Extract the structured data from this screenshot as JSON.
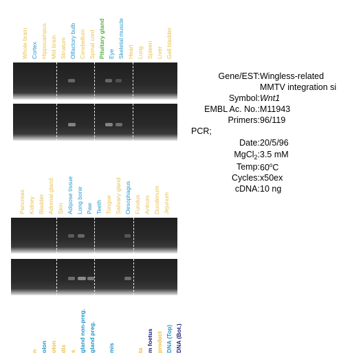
{
  "colors": {
    "gold": "#E8C04A",
    "blue": "#2196C8",
    "green": "#54B23A",
    "navy": "#1C1C78",
    "gel": "#2a2a2a"
  },
  "panels": [
    {
      "labels": [
        {
          "text": "Whole brain",
          "color": "#E8C04A"
        },
        {
          "text": "Cortex",
          "color": "#2196C8"
        },
        {
          "text": "Hippocampus",
          "color": "#E8C04A"
        },
        {
          "text": "Mid brain",
          "color": "#E8C04A"
        },
        {
          "text": "Striatum",
          "color": "#E8C04A"
        },
        {
          "text": "Olfactory bulb",
          "color": "#2196C8"
        },
        {
          "text": "Cerebellum",
          "color": "#E8C04A"
        },
        {
          "text": "Spinal cord",
          "color": "#E8C04A"
        },
        {
          "text": "Pituitary gland",
          "color": "#54B23A"
        },
        {
          "text": "Eye",
          "color": "#2196C8"
        },
        {
          "text": "Skeletal muscle",
          "color": "#2196C8"
        },
        {
          "text": "Heart",
          "color": "#E8C04A"
        },
        {
          "text": "Lung",
          "color": "#E8C04A"
        },
        {
          "text": "Spleen",
          "color": "#E8C04A"
        },
        {
          "text": "Liver",
          "color": "#E8C04A"
        },
        {
          "text": "Gall bladder",
          "color": "#E8C04A"
        }
      ]
    },
    {
      "labels": [
        {
          "text": "Pancreas",
          "color": "#E8C04A"
        },
        {
          "text": "Kidney",
          "color": "#E8C04A"
        },
        {
          "text": "Bladder",
          "color": "#E8C04A"
        },
        {
          "text": "Adrenal gland",
          "color": "#E8C04A"
        },
        {
          "text": "Skin",
          "color": "#E8C04A"
        },
        {
          "text": "Adipose tissue",
          "color": "#2196C8"
        },
        {
          "text": "Long bone",
          "color": "#2196C8"
        },
        {
          "text": "Paw",
          "color": "#2196C8"
        },
        {
          "text": "Teeth",
          "color": "#2196C8"
        },
        {
          "text": "Tongue",
          "color": "#E8C04A"
        },
        {
          "text": "Salivary gland",
          "color": "#E8C04A"
        },
        {
          "text": "Oesophagus",
          "color": "#2196C8"
        },
        {
          "text": "Fundus",
          "color": "#E8C04A"
        },
        {
          "text": "Antrum",
          "color": "#E8C04A"
        },
        {
          "text": "Duodenum",
          "color": "#E8C04A"
        },
        {
          "text": "Jejunum",
          "color": "#E8C04A"
        }
      ]
    },
    {
      "labels": [
        {
          "text": "n",
          "color": "#E8C04A"
        },
        {
          "text": "olon",
          "color": "#2196C8"
        },
        {
          "text": "olon",
          "color": "#E8C04A"
        },
        {
          "text": "dix",
          "color": "#E8C04A"
        },
        {
          "text": "s",
          "color": "#E8C04A"
        },
        {
          "text": "gland non-preg.",
          "color": "#2196C8"
        },
        {
          "text": "gland preg.",
          "color": "#2196C8"
        },
        {
          "text": "",
          "color": "#E8C04A"
        },
        {
          "text": "mis",
          "color": "#2196C8"
        },
        {
          "text": "",
          "color": "#E8C04A"
        },
        {
          "text": "ta",
          "color": "#E8C04A"
        },
        {
          "text": "m foetus",
          "color": "#1C1C78"
        },
        {
          "text": "product",
          "color": "#E8C04A"
        },
        {
          "text": "DNA (Top)",
          "color": "#2196C8"
        },
        {
          "text": "DNA (Bot.)",
          "color": "#1C1C78"
        }
      ]
    }
  ],
  "info": {
    "rows": [
      {
        "label": "Gene/EST:",
        "value": "Wingless-related"
      },
      {
        "label": "",
        "value": "MMTV integration si"
      },
      {
        "label": "Symbol:",
        "value": "Wnt1"
      },
      {
        "label": "EMBL Ac. No.:",
        "value": "M11943"
      },
      {
        "label": "Primers:",
        "value": "96/119"
      },
      {
        "label": "PCR;",
        "value": ""
      },
      {
        "label": "Date:",
        "value": "20/5/96"
      },
      {
        "label": "MgCl",
        "label_sub": "2",
        "label_tail": ":",
        "value": "3.5 mM"
      },
      {
        "label": "Temp:",
        "value": "60",
        "value_sup": "o",
        "value_tail": "C"
      },
      {
        "label": "Cycles:",
        "value": "x50ex"
      },
      {
        "label": "cDNA:",
        "value": "10 ng"
      }
    ]
  }
}
